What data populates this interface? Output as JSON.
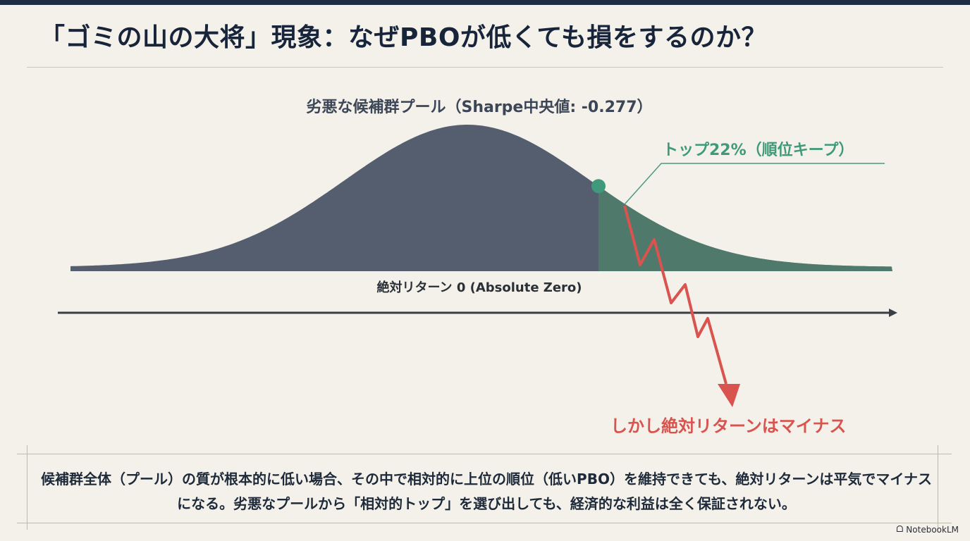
{
  "title": "「ゴミの山の大将」現象：なぜPBOが低くても損をするのか？",
  "chart_data": {
    "type": "area",
    "title": "劣悪な候補群プール（Sharpe中央値: -0.277）",
    "xlabel": "絶対リターン 0 (Absolute Zero)",
    "top_share_percent": 22,
    "annotations": [
      {
        "text": "トップ22%（順位キープ）",
        "color": "#3E9A7A"
      },
      {
        "text": "しかし絶対リターンはマイナス",
        "color": "#D9534F"
      }
    ],
    "colors": {
      "pool": "#555E6E",
      "top_tail": "#4E7A6A",
      "marker": "#3E9A7A",
      "arrow": "#D9534F"
    }
  },
  "description": "候補群全体（プール）の質が根本的に低い場合、その中で相対的に上位の順位（低いPBO）を維持できても、絶対リターンは平気でマイナスになる。劣悪なプールから「相対的トップ」を選び出しても、経済的な利益は全く保証されない。",
  "brand": {
    "icon": "notebooklm-icon",
    "label": "NotebookLM"
  }
}
